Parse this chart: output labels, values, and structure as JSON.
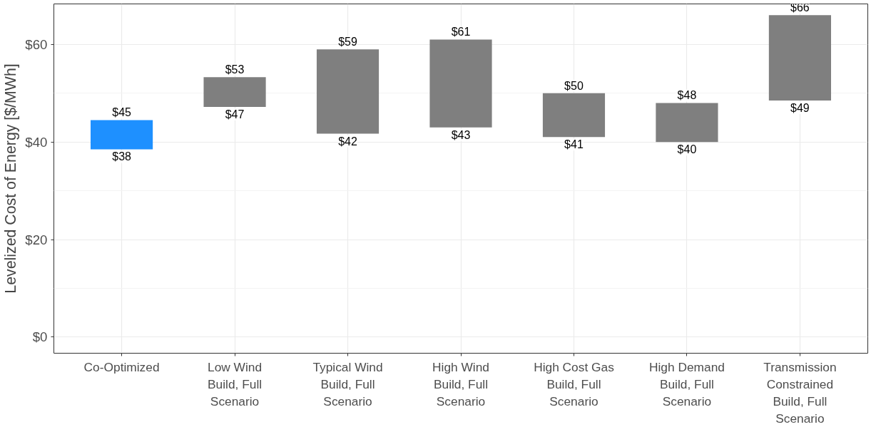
{
  "chart_data": {
    "type": "bar",
    "ylabel": "Levelized Cost of Energy [$/MWh]",
    "categories": [
      "Co-Optimized",
      "Low Wind\nBuild, Full\nScenario",
      "Typical Wind\nBuild, Full\nScenario",
      "High Wind\nBuild, Full\nScenario",
      "High Cost Gas\nBuild, Full\nScenario",
      "High Demand\nBuild, Full\nScenario",
      "Transmission\nConstrained\nBuild, Full\nScenario"
    ],
    "base": [
      38.5,
      47.2,
      41.7,
      43,
      41,
      40,
      48.5
    ],
    "values": [
      6,
      6.1,
      17.3,
      18,
      9,
      8,
      17.5
    ],
    "colors": [
      "#1e90ff",
      "#7f7f7f",
      "#7f7f7f",
      "#7f7f7f",
      "#7f7f7f",
      "#7f7f7f",
      "#7f7f7f"
    ],
    "ylim": [
      -3.3,
      68.3
    ],
    "yticks": [
      {
        "value": 0,
        "label": "$0"
      },
      {
        "value": 20,
        "label": "$20"
      },
      {
        "value": 40,
        "label": "$40"
      },
      {
        "value": 60,
        "label": "$60"
      }
    ],
    "grid": true,
    "annotations": [
      {
        "text": "$45",
        "x": "Co-Optimized",
        "y": 44.5
      },
      {
        "text": "$38",
        "x": "Co-Optimized",
        "y": 38.5
      },
      {
        "text": "$53",
        "x": "Low Wind\nBuild, Full\nScenario",
        "y": 53.3
      },
      {
        "text": "$47",
        "x": "Low Wind\nBuild, Full\nScenario",
        "y": 47.2
      },
      {
        "text": "$59",
        "x": "Typical Wind\nBuild, Full\nScenario",
        "y": 59
      },
      {
        "text": "$42",
        "x": "Typical Wind\nBuild, Full\nScenario",
        "y": 41.7
      },
      {
        "text": "$61",
        "x": "High Wind\nBuild, Full\nScenario",
        "y": 61
      },
      {
        "text": "$43",
        "x": "High Wind\nBuild, Full\nScenario",
        "y": 43
      },
      {
        "text": "$50",
        "x": "High Cost Gas\nBuild, Full\nScenario",
        "y": 50
      },
      {
        "text": "$41",
        "x": "High Cost Gas\nBuild, Full\nScenario",
        "y": 41
      },
      {
        "text": "$48",
        "x": "High Demand\nBuild, Full\nScenario",
        "y": 48
      },
      {
        "text": "$40",
        "x": "High Demand\nBuild, Full\nScenario",
        "y": 40
      },
      {
        "text": "$66",
        "x": "Transmission\nConstrained\nBuild, Full\nScenario",
        "y": 66
      },
      {
        "text": "$49",
        "x": "Transmission\nConstrained\nBuild, Full\nScenario",
        "y": 48.5
      }
    ]
  }
}
